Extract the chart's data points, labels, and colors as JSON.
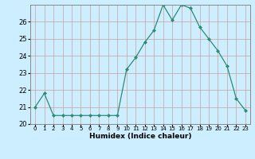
{
  "x": [
    0,
    1,
    2,
    3,
    4,
    5,
    6,
    7,
    8,
    9,
    10,
    11,
    12,
    13,
    14,
    15,
    16,
    17,
    18,
    19,
    20,
    21,
    22,
    23
  ],
  "y": [
    21.0,
    21.8,
    20.5,
    20.5,
    20.5,
    20.5,
    20.5,
    20.5,
    20.5,
    20.5,
    23.2,
    23.9,
    24.8,
    25.5,
    27.0,
    26.1,
    27.0,
    26.8,
    25.7,
    25.0,
    24.3,
    23.4,
    21.5,
    20.8
  ],
  "line_color": "#2e8b74",
  "marker": "D",
  "marker_size": 2.0,
  "bg_color": "#cceeff",
  "grid_major_color": "#c8a0a0",
  "grid_minor_color": "#ddbcbc",
  "xlabel": "Humidex (Indice chaleur)",
  "xlim": [
    -0.5,
    23.5
  ],
  "ylim": [
    20.0,
    27.0
  ],
  "yticks": [
    20,
    21,
    22,
    23,
    24,
    25,
    26
  ],
  "xtick_labels": [
    "0",
    "1",
    "2",
    "3",
    "4",
    "5",
    "6",
    "7",
    "8",
    "9",
    "10",
    "11",
    "12",
    "13",
    "14",
    "15",
    "16",
    "17",
    "18",
    "19",
    "20",
    "21",
    "22",
    "23"
  ]
}
